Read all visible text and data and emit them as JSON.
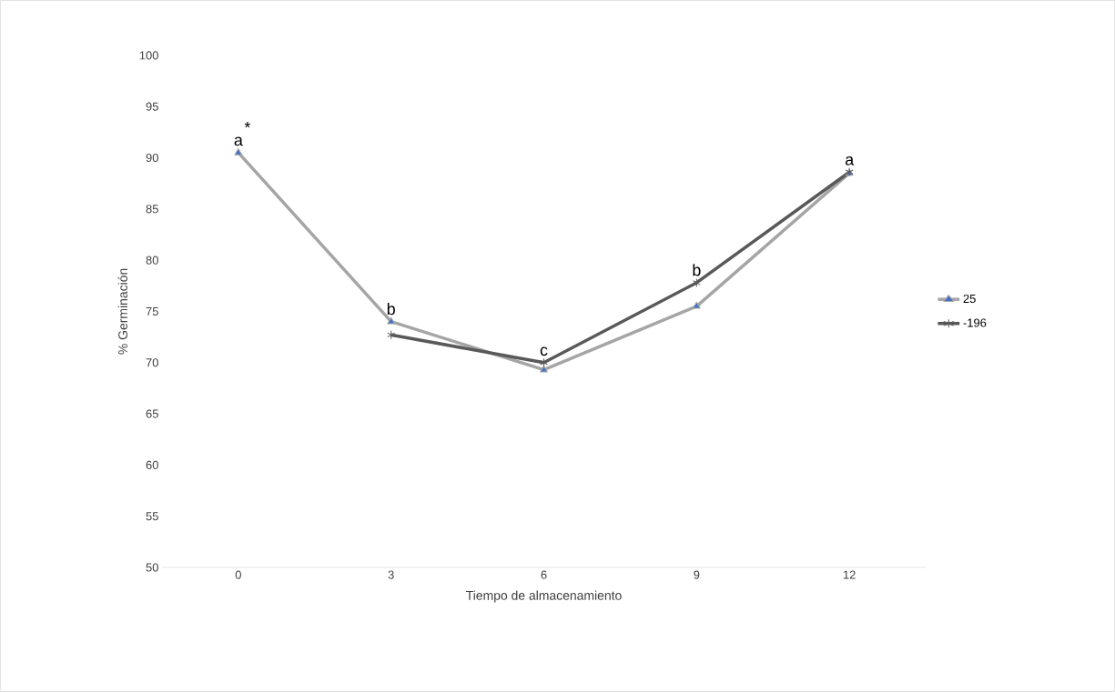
{
  "chart_data": {
    "type": "line",
    "xlabel": "Tiempo de almacenamiento",
    "ylabel": "% Germinación",
    "categories": [
      "0",
      "3",
      "6",
      "9",
      "12"
    ],
    "series": [
      {
        "name": "25",
        "color": "#a5a5a5",
        "marker": "triangle",
        "values": [
          90.5,
          74.0,
          69.3,
          75.5,
          88.5
        ]
      },
      {
        "name": "-196",
        "color": "#595959",
        "marker": "cross",
        "values": [
          null,
          72.7,
          70.0,
          77.8,
          88.6
        ]
      }
    ],
    "ylim": [
      50,
      100
    ],
    "yticks": [
      50,
      55,
      60,
      65,
      70,
      75,
      80,
      85,
      90,
      95,
      100
    ],
    "grid": false,
    "legend": "right",
    "annotations": [
      {
        "text": "a",
        "x": "0",
        "y": 90.5
      },
      {
        "text": "*",
        "x": "0",
        "y": 90.5
      },
      {
        "text": "b",
        "x": "3",
        "y": 74.0
      },
      {
        "text": "c",
        "x": "6",
        "y": 70.0
      },
      {
        "text": "b",
        "x": "9",
        "y": 77.8
      },
      {
        "text": "a",
        "x": "12",
        "y": 88.6
      }
    ]
  }
}
